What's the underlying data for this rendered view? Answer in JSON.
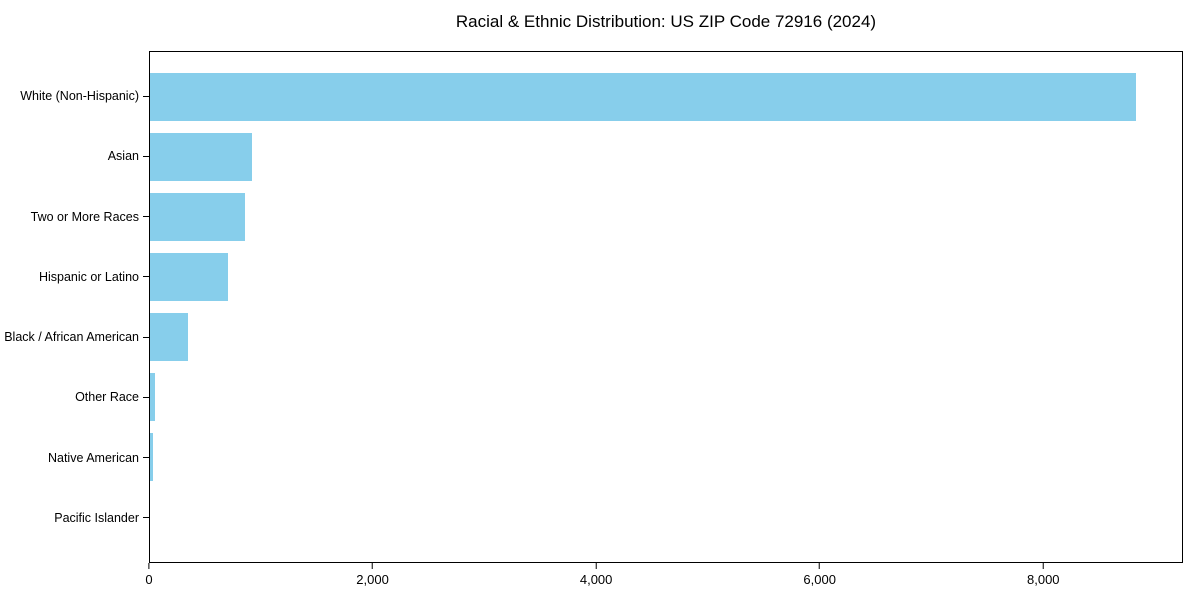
{
  "colors": {
    "bar": "#87CEEB",
    "spine": "#000000",
    "text": "#000000",
    "background": "#FFFFFF"
  },
  "chart_data": {
    "type": "bar",
    "orientation": "horizontal",
    "title": "Racial & Ethnic Distribution: US ZIP Code 72916 (2024)",
    "categories": [
      "White (Non-Hispanic)",
      "Asian",
      "Two or More Races",
      "Hispanic or Latino",
      "Black / African American",
      "Other Race",
      "Native American",
      "Pacific Islander"
    ],
    "values": [
      8840,
      910,
      855,
      695,
      340,
      45,
      30,
      0
    ],
    "bar_color": "#87CEEB",
    "xlabel": "",
    "ylabel": "",
    "xlim": [
      0,
      9250
    ],
    "x_ticks": [
      0,
      2000,
      4000,
      6000,
      8000
    ],
    "x_tick_labels": [
      "0",
      "2,000",
      "4,000",
      "6,000",
      "8,000"
    ],
    "grid": false,
    "legend": null,
    "notes": "Categories sorted descending, largest at top; full box spines; no gridlines"
  }
}
